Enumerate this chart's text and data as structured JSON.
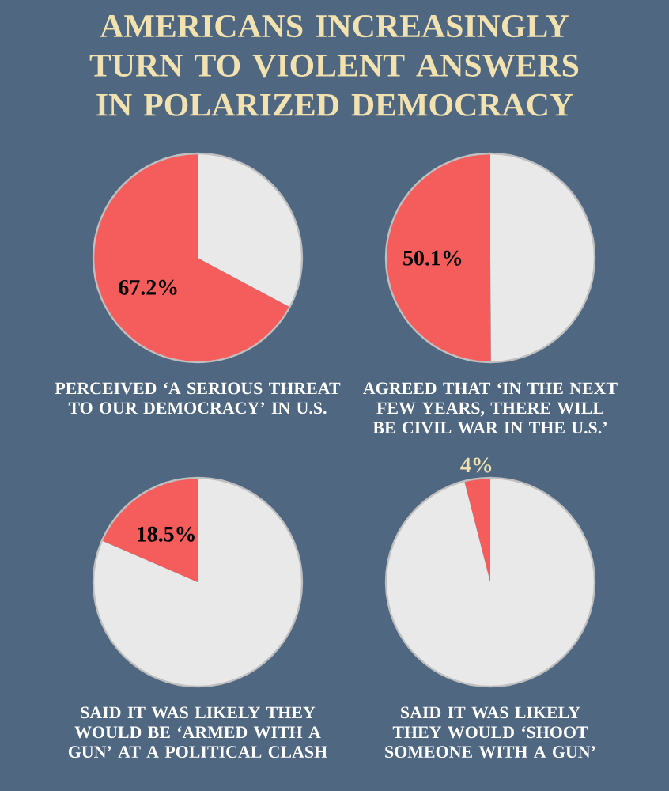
{
  "chart_data": [
    {
      "type": "pie",
      "title": "AMERICANS INCREASINGLY TURN TO VIOLENT ANSWERS IN POLARIZED DEMOCRACY",
      "categories": [
        null,
        null
      ],
      "values": [
        67.2,
        32.8
      ],
      "colors": [
        "#f55d5d",
        "#e9e9e9"
      ],
      "value_labels": [
        "67.2%",
        null
      ],
      "annotations": [
        "PERCEIVED ‘A SERIOUS THREAT TO OUR DEMOCRACY’ IN U.S."
      ]
    },
    {
      "type": "pie",
      "categories": [
        null,
        null
      ],
      "values": [
        50.1,
        49.9
      ],
      "colors": [
        "#f55d5d",
        "#e9e9e9"
      ],
      "value_labels": [
        "50.1%",
        null
      ],
      "annotations": [
        "AGREED THAT ‘IN THE NEXT FEW YEARS, THERE WILL BE CIVIL WAR IN THE U.S.’"
      ]
    },
    {
      "type": "pie",
      "categories": [
        null,
        null
      ],
      "values": [
        18.5,
        81.5
      ],
      "colors": [
        "#f55d5d",
        "#e9e9e9"
      ],
      "value_labels": [
        "18.5%",
        null
      ],
      "annotations": [
        "SAID IT WAS LIKELY THEY WOULD BE ‘ARMED WITH A GUN’ AT A POLITICAL CLASH"
      ]
    },
    {
      "type": "pie",
      "categories": [
        null,
        null
      ],
      "values": [
        4,
        96
      ],
      "colors": [
        "#f55d5d",
        "#e9e9e9"
      ],
      "value_labels": [
        "4%",
        null
      ],
      "annotations": [
        "SAID IT WAS LIKELY THEY WOULD ‘SHOOT SOMEONE WITH A GUN’"
      ]
    }
  ]
}
